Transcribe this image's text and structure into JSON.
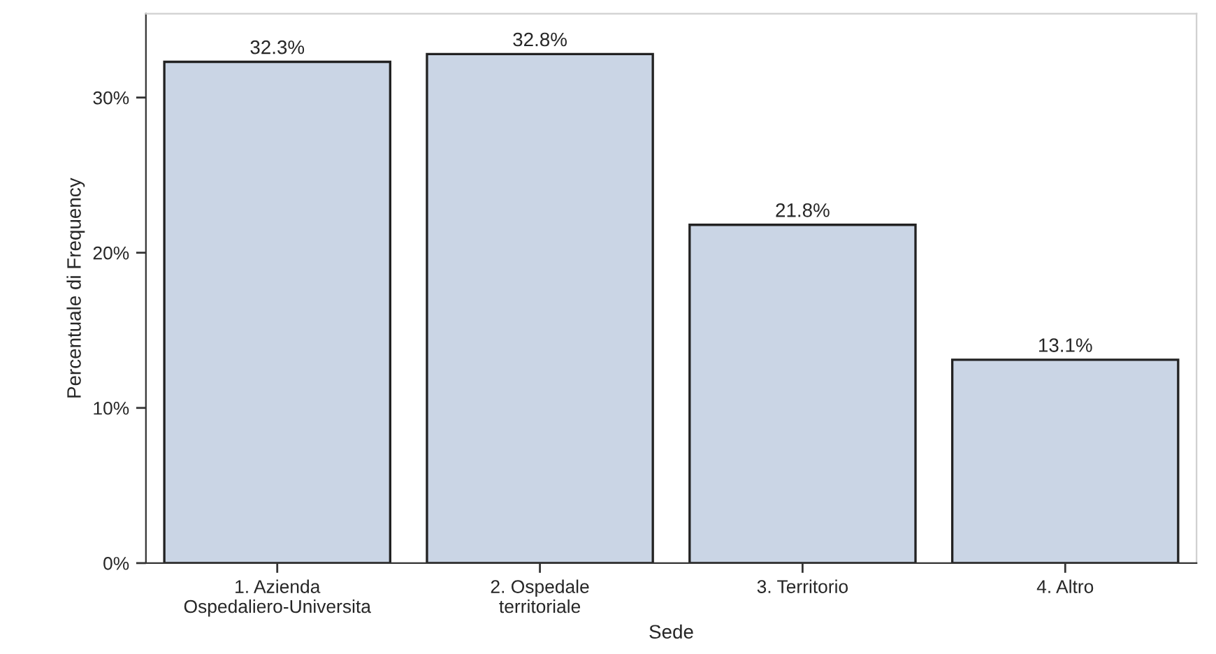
{
  "chart_data": {
    "type": "bar",
    "xlabel": "Sede",
    "ylabel": "Percentuale di Frequency",
    "categories": [
      "1. Azienda\nOspedaliero-Universita",
      "2. Ospedale\nterritoriale",
      "3. Territorio",
      "4. Altro"
    ],
    "values": [
      32.3,
      32.8,
      21.8,
      13.1
    ],
    "value_labels": [
      "32.3%",
      "32.8%",
      "21.8%",
      "13.1%"
    ],
    "color": "#cad5e5",
    "ylim": [
      0,
      35.4
    ],
    "yticks": [
      {
        "value": 0,
        "label": "0%"
      },
      {
        "value": 10,
        "label": "10%"
      },
      {
        "value": 20,
        "label": "20%"
      },
      {
        "value": 30,
        "label": "30%"
      }
    ],
    "grid": false,
    "legend": false
  }
}
